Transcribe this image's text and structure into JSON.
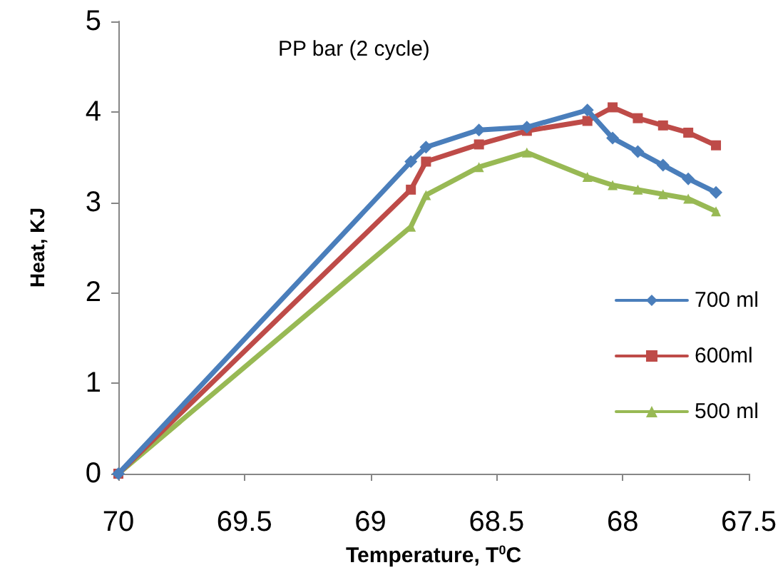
{
  "chart_data": {
    "type": "line",
    "title": "PP bar (2 cycle)",
    "xlabel": "Temperature, T$^{0}$C",
    "ylabel": "Heat, KJ",
    "x": [
      70,
      68.84,
      68.78,
      68.57,
      68.38,
      68.14,
      68.04,
      67.94,
      67.84,
      67.74,
      67.63
    ],
    "series": [
      {
        "name": "700 ml",
        "color": "#4a7ebb",
        "marker": "diamond",
        "values": [
          0,
          3.45,
          3.61,
          3.8,
          3.83,
          4.02,
          3.71,
          3.56,
          3.41,
          3.26,
          3.11
        ]
      },
      {
        "name": "600ml",
        "color": "#be4b48",
        "marker": "square",
        "values": [
          0,
          3.14,
          3.45,
          3.64,
          3.79,
          3.9,
          4.05,
          3.93,
          3.85,
          3.77,
          3.63
        ]
      },
      {
        "name": "500 ml",
        "color": "#98b954",
        "marker": "triangle",
        "values": [
          0,
          2.73,
          3.08,
          3.39,
          3.55,
          3.28,
          3.19,
          3.14,
          3.09,
          3.04,
          2.9
        ]
      }
    ],
    "xlim": [
      70,
      67.5
    ],
    "xticks": [
      70,
      69.5,
      69,
      68.5,
      68,
      67.5
    ],
    "ylim": [
      0,
      5
    ],
    "yticks": [
      0,
      1,
      2,
      3,
      4,
      5
    ],
    "grid": false,
    "legend": "right",
    "line_style": "solid"
  }
}
